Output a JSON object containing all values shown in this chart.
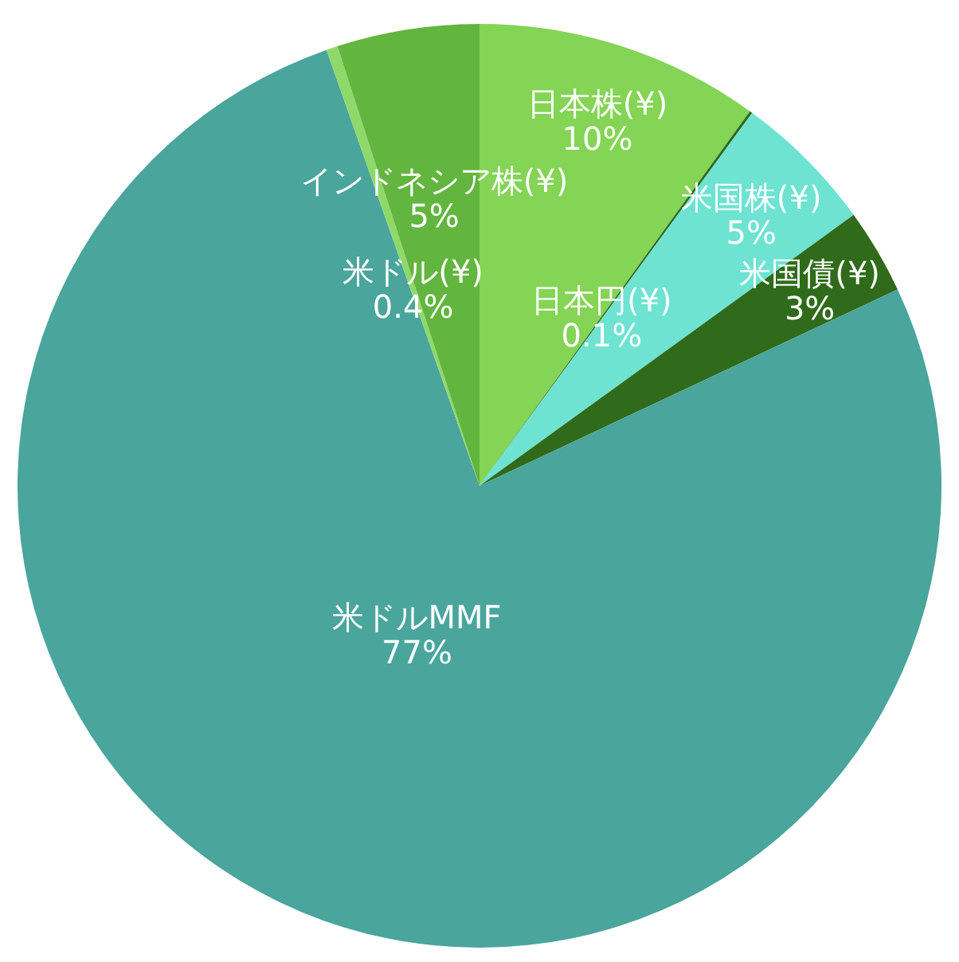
{
  "chart_data": {
    "type": "pie",
    "categories": [
      "日本株(¥)",
      "日本円(¥)",
      "米国株(¥)",
      "米国債(¥)",
      "米ドルMMF",
      "米ドル(¥)",
      "インドネシア株(¥)"
    ],
    "values": [
      10,
      0.1,
      5,
      3,
      77,
      0.4,
      5
    ],
    "value_labels": [
      "10%",
      "0.1%",
      "5%",
      "3%",
      "77%",
      "0.4%",
      "5%"
    ],
    "colors": [
      "#84d455",
      "#2e6b1e",
      "#6ee3d2",
      "#2f6b1a",
      "#4aa59c",
      "#8fd96a",
      "#62b53e"
    ],
    "legend": false
  }
}
